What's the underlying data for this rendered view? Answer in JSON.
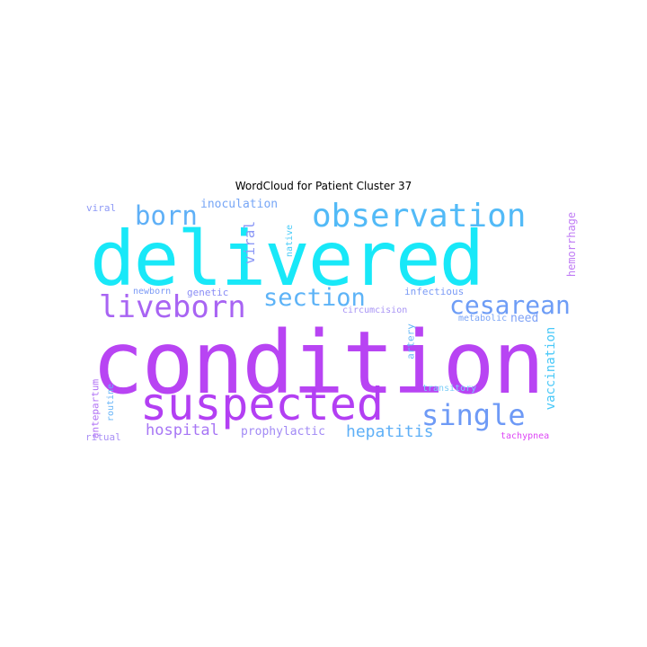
{
  "title": "WordCloud for Patient Cluster 37",
  "palette": {
    "cyan": "#1EE8F7",
    "blue_light": "#54B8F7",
    "blue_mid": "#6AA0F7",
    "purple": "#B145F2",
    "purple_light": "#B787F5",
    "magenta": "#D63CF5",
    "pink": "#E06AF5"
  },
  "words": [
    {
      "text": "condition",
      "color": "#B844F3"
    },
    {
      "text": "delivered",
      "color": "#18E8F8"
    },
    {
      "text": "suspected",
      "color": "#B33FF3"
    },
    {
      "text": "observation",
      "color": "#52BAF7"
    },
    {
      "text": "liveborn",
      "color": "#A864F3"
    },
    {
      "text": "born",
      "color": "#5FB0F7"
    },
    {
      "text": "section",
      "color": "#5DB3F7"
    },
    {
      "text": "cesarean",
      "color": "#6E9DF6"
    },
    {
      "text": "single",
      "color": "#6E9AF6"
    },
    {
      "text": "hospital",
      "color": "#A776F5"
    },
    {
      "text": "hepatitis",
      "color": "#5FB0F7"
    },
    {
      "text": "prophylactic",
      "color": "#A28AF5"
    },
    {
      "text": "inoculation",
      "color": "#77A6F6"
    },
    {
      "text": "viral",
      "color": "#8D99F6"
    },
    {
      "text": "vaccination",
      "color": "#48C8F8"
    },
    {
      "text": "need",
      "color": "#7FA2F6"
    },
    {
      "text": "newborn",
      "color": "#7D9BF6"
    },
    {
      "text": "genetic",
      "color": "#8A8DF5"
    },
    {
      "text": "infectious",
      "color": "#7C9CF6"
    },
    {
      "text": "circumcision",
      "color": "#A894F5"
    },
    {
      "text": "metabolic",
      "color": "#7AA4F6"
    },
    {
      "text": "artery",
      "color": "#66B8F7"
    },
    {
      "text": "transitory",
      "color": "#7ECFF8"
    },
    {
      "text": "antepartum",
      "color": "#B070F5"
    },
    {
      "text": "routine",
      "color": "#68B5F7"
    },
    {
      "text": "ritual",
      "color": "#A990F5"
    },
    {
      "text": "tachypnea",
      "color": "#DD45F5"
    },
    {
      "text": "native",
      "color": "#48CBF8"
    },
    {
      "text": "hemorrhage",
      "color": "#C07CF5"
    },
    {
      "text": "atherosclerosis",
      "color": "#C27CF5"
    }
  ]
}
